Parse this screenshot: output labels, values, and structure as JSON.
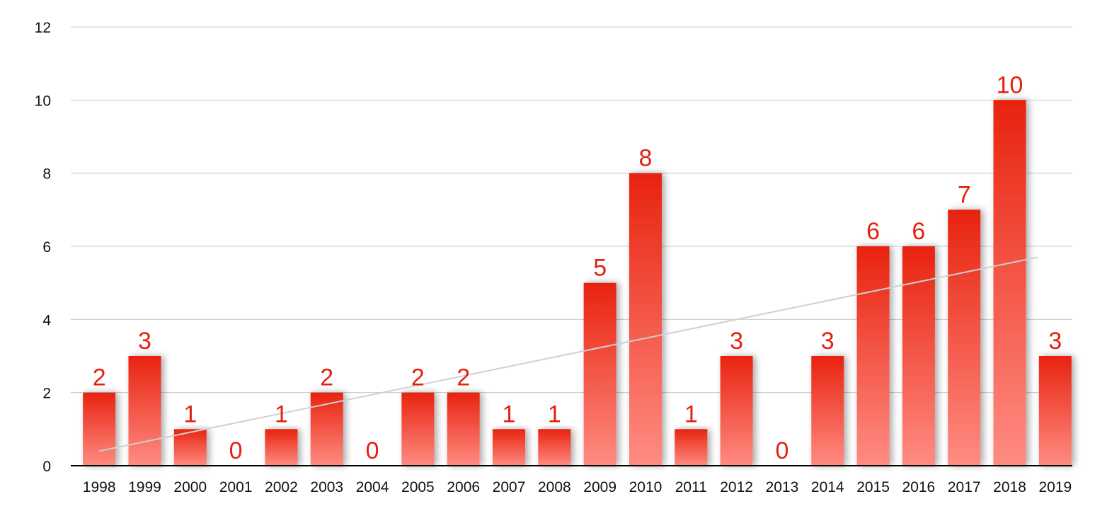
{
  "chart_data": {
    "type": "bar",
    "title": "",
    "xlabel": "",
    "ylabel": "",
    "categories": [
      "1998",
      "1999",
      "2000",
      "2001",
      "2002",
      "2003",
      "2004",
      "2005",
      "2006",
      "2007",
      "2008",
      "2009",
      "2010",
      "2011",
      "2012",
      "2013",
      "2014",
      "2015",
      "2016",
      "2017",
      "2018",
      "2019"
    ],
    "values": [
      2,
      3,
      1,
      0,
      1,
      2,
      0,
      2,
      2,
      1,
      1,
      5,
      8,
      1,
      3,
      0,
      3,
      6,
      6,
      7,
      10,
      3
    ],
    "data_labels": [
      "2",
      "3",
      "1",
      "0",
      "1",
      "2",
      "0",
      "2",
      "2",
      "1",
      "1",
      "5",
      "8",
      "1",
      "3",
      "0",
      "3",
      "6",
      "6",
      "7",
      "10",
      "3"
    ],
    "ylim": [
      0,
      12
    ],
    "yticks": [
      0,
      2,
      4,
      6,
      8,
      10,
      12
    ],
    "ytick_labels": [
      "0",
      "2",
      "4",
      "6",
      "8",
      "10",
      "12"
    ],
    "grid": true,
    "legend": "none",
    "trendline": {
      "type": "linear",
      "start": 0.4,
      "end": 5.7
    },
    "colors": {
      "bar_top": "#e8230f",
      "bar_bottom": "#ff8c82",
      "data_label": "#e32212",
      "grid": "#c8c8c8",
      "axis": "#000000",
      "trendline": "#d0d0d0",
      "tick_text": "#111111"
    }
  }
}
